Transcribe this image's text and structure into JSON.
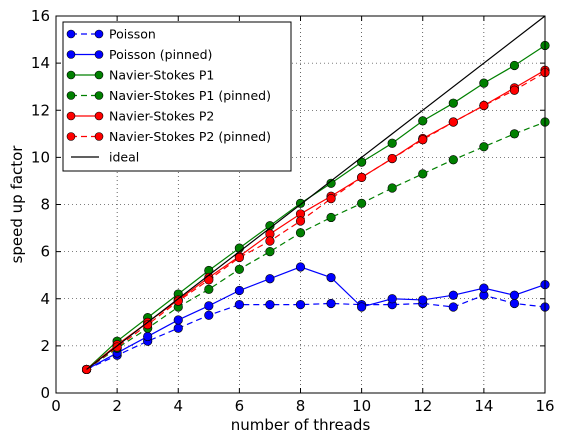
{
  "chart_data": {
    "type": "line",
    "title": "",
    "xlabel": "number of threads",
    "ylabel": "speed up factor",
    "xlim": [
      0,
      16
    ],
    "ylim": [
      0,
      16
    ],
    "x_ticks": [
      0,
      2,
      4,
      6,
      8,
      10,
      12,
      14,
      16
    ],
    "y_ticks": [
      0,
      2,
      4,
      6,
      8,
      10,
      12,
      14,
      16
    ],
    "grid": true,
    "legend_position": "top-left",
    "series": [
      {
        "name": "Poisson",
        "color": "#0000ff",
        "line_style": "dashed",
        "marker": "circle",
        "x": [
          1,
          2,
          3,
          4,
          5,
          6,
          7,
          8,
          9,
          10,
          11,
          12,
          13,
          14,
          15,
          16
        ],
        "y": [
          1.0,
          1.6,
          2.2,
          2.75,
          3.3,
          3.75,
          3.75,
          3.75,
          3.8,
          3.75,
          3.75,
          3.8,
          3.65,
          4.15,
          3.8,
          3.65
        ]
      },
      {
        "name": "Poisson (pinned)",
        "color": "#0000ff",
        "line_style": "solid",
        "marker": "circle",
        "x": [
          1,
          2,
          3,
          4,
          5,
          6,
          7,
          8,
          9,
          10,
          11,
          12,
          13,
          14,
          15,
          16
        ],
        "y": [
          1.0,
          1.7,
          2.4,
          3.1,
          3.7,
          4.35,
          4.85,
          5.35,
          4.9,
          3.65,
          4.0,
          3.95,
          4.15,
          4.45,
          4.15,
          4.6
        ]
      },
      {
        "name": "Navier-Stokes P1",
        "color": "#008000",
        "line_style": "solid",
        "marker": "circle",
        "x": [
          1,
          2,
          3,
          4,
          5,
          6,
          7,
          8,
          9,
          10,
          11,
          12,
          13,
          14,
          15,
          16
        ],
        "y": [
          1.0,
          2.2,
          3.2,
          4.2,
          5.2,
          6.15,
          7.1,
          8.05,
          8.9,
          9.8,
          10.6,
          11.55,
          12.3,
          13.15,
          13.9,
          14.75
        ]
      },
      {
        "name": "Navier-Stokes P1 (pinned)",
        "color": "#008000",
        "line_style": "dashed",
        "marker": "circle",
        "x": [
          1,
          2,
          3,
          4,
          5,
          6,
          7,
          8,
          9,
          10,
          11,
          12,
          13,
          14,
          15,
          16
        ],
        "y": [
          1.0,
          1.9,
          2.75,
          3.65,
          4.4,
          5.25,
          6.0,
          6.8,
          7.45,
          8.05,
          8.7,
          9.3,
          9.9,
          10.45,
          11.0,
          11.5
        ]
      },
      {
        "name": "Navier-Stokes P2",
        "color": "#ff0000",
        "line_style": "solid",
        "marker": "circle",
        "x": [
          1,
          2,
          3,
          4,
          5,
          6,
          7,
          8,
          9,
          10,
          11,
          12,
          13,
          14,
          15,
          16
        ],
        "y": [
          1.0,
          2.05,
          3.0,
          3.95,
          4.9,
          5.8,
          6.75,
          7.6,
          8.35,
          9.15,
          9.95,
          10.8,
          11.5,
          12.2,
          12.95,
          13.7
        ]
      },
      {
        "name": "Navier-Stokes P2 (pinned)",
        "color": "#ff0000",
        "line_style": "dashed",
        "marker": "circle",
        "x": [
          1,
          2,
          3,
          4,
          5,
          6,
          7,
          8,
          9,
          10,
          11,
          12,
          13,
          14,
          15,
          16
        ],
        "y": [
          1.0,
          1.95,
          2.9,
          3.9,
          4.8,
          5.75,
          6.45,
          7.3,
          8.25,
          9.15,
          9.95,
          10.75,
          11.5,
          12.2,
          12.85,
          13.6
        ]
      },
      {
        "name": "ideal",
        "color": "#000000",
        "line_style": "solid",
        "marker": "none",
        "x": [
          1,
          16
        ],
        "y": [
          1,
          16
        ]
      }
    ]
  }
}
